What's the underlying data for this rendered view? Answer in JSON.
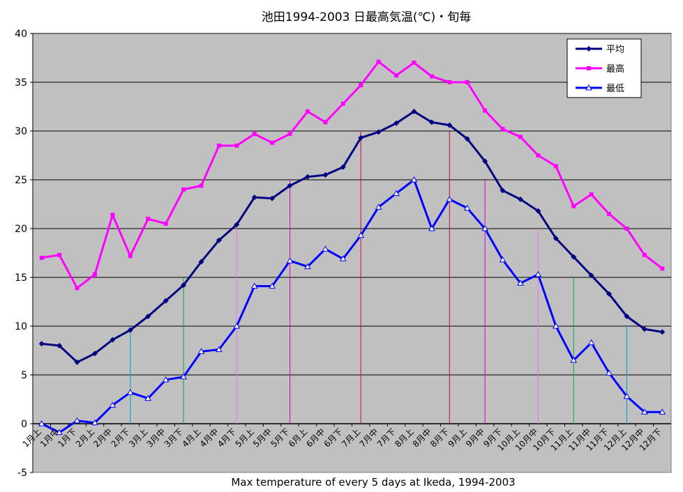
{
  "chart_data": {
    "type": "line",
    "title": "池田1994-2003 日最高気温(℃)・旬毎",
    "xlabel": "Max temperature of every 5 days at Ikeda, 1994-2003",
    "ylabel": "",
    "ylim": [
      -5,
      40
    ],
    "yticks": [
      -5,
      0,
      5,
      10,
      15,
      20,
      25,
      30,
      35,
      40
    ],
    "grid": true,
    "legend_position": "top-right",
    "background_color": "#c0c0c0",
    "categories": [
      "1月上",
      "1月中",
      "1月下",
      "2月上",
      "2月中",
      "2月下",
      "3月上",
      "3月中",
      "3月下",
      "4月上",
      "4月中",
      "4月下",
      "5月上",
      "5月中",
      "5月下",
      "6月上",
      "6月中",
      "6月下",
      "7月上",
      "7月中",
      "7月下",
      "8月上",
      "8月中",
      "8月下",
      "9月上",
      "9月中",
      "9月下",
      "10月上",
      "10月中",
      "10月下",
      "11月上",
      "11月中",
      "11月下",
      "12月上",
      "12月中",
      "12月下"
    ],
    "series": [
      {
        "name": "平均",
        "color": "#000080",
        "marker": "diamond",
        "values": [
          8.2,
          8.0,
          6.3,
          7.2,
          8.6,
          9.6,
          11.0,
          12.6,
          14.2,
          16.6,
          18.8,
          20.4,
          23.2,
          23.1,
          24.4,
          25.3,
          25.5,
          26.3,
          29.3,
          29.9,
          30.8,
          32.0,
          30.9,
          30.6,
          29.2,
          26.9,
          23.9,
          23.0,
          21.8,
          19.0,
          17.1,
          15.2,
          13.3,
          11.0,
          9.7,
          9.4
        ]
      },
      {
        "name": "最高",
        "color": "#ff00ff",
        "marker": "square",
        "values": [
          17.0,
          17.3,
          13.9,
          15.3,
          21.4,
          17.2,
          21.0,
          20.5,
          24.0,
          24.4,
          28.5,
          28.5,
          29.7,
          28.8,
          29.7,
          32.0,
          30.9,
          32.8,
          34.7,
          37.1,
          35.7,
          37.0,
          35.6,
          35.0,
          35.0,
          32.1,
          30.2,
          29.4,
          27.5,
          26.4,
          22.3,
          23.5,
          21.5,
          20.0,
          17.3,
          15.9
        ]
      },
      {
        "name": "最低",
        "color": "#0000ff",
        "marker": "triangle",
        "values": [
          0.0,
          -0.9,
          0.3,
          0.1,
          1.9,
          3.2,
          2.6,
          4.5,
          4.8,
          7.4,
          7.6,
          10.0,
          14.1,
          14.1,
          16.7,
          16.1,
          17.9,
          16.9,
          19.3,
          22.2,
          23.6,
          25.0,
          20.0,
          23.0,
          22.1,
          20.0,
          16.8,
          14.4,
          15.3,
          10.0,
          6.5,
          8.3,
          5.2,
          2.8,
          1.2,
          1.2
        ]
      }
    ],
    "reference_lines": [
      {
        "category": "2月下",
        "value": 10,
        "color": "#0099cc"
      },
      {
        "category": "3月下",
        "value": 15,
        "color": "#00aa44"
      },
      {
        "category": "4月下",
        "value": 20,
        "color": "#ff66ff"
      },
      {
        "category": "5月下",
        "value": 25,
        "color": "#cc00cc"
      },
      {
        "category": "7月上",
        "value": 30,
        "color": "#cc0044"
      },
      {
        "category": "8月下",
        "value": 30,
        "color": "#cc0044"
      },
      {
        "category": "9月中",
        "value": 25,
        "color": "#cc00cc"
      },
      {
        "category": "10月中",
        "value": 20,
        "color": "#ff66ff"
      },
      {
        "category": "11月上",
        "value": 15,
        "color": "#00aa44"
      },
      {
        "category": "12月上",
        "value": 10,
        "color": "#0099cc"
      }
    ]
  }
}
